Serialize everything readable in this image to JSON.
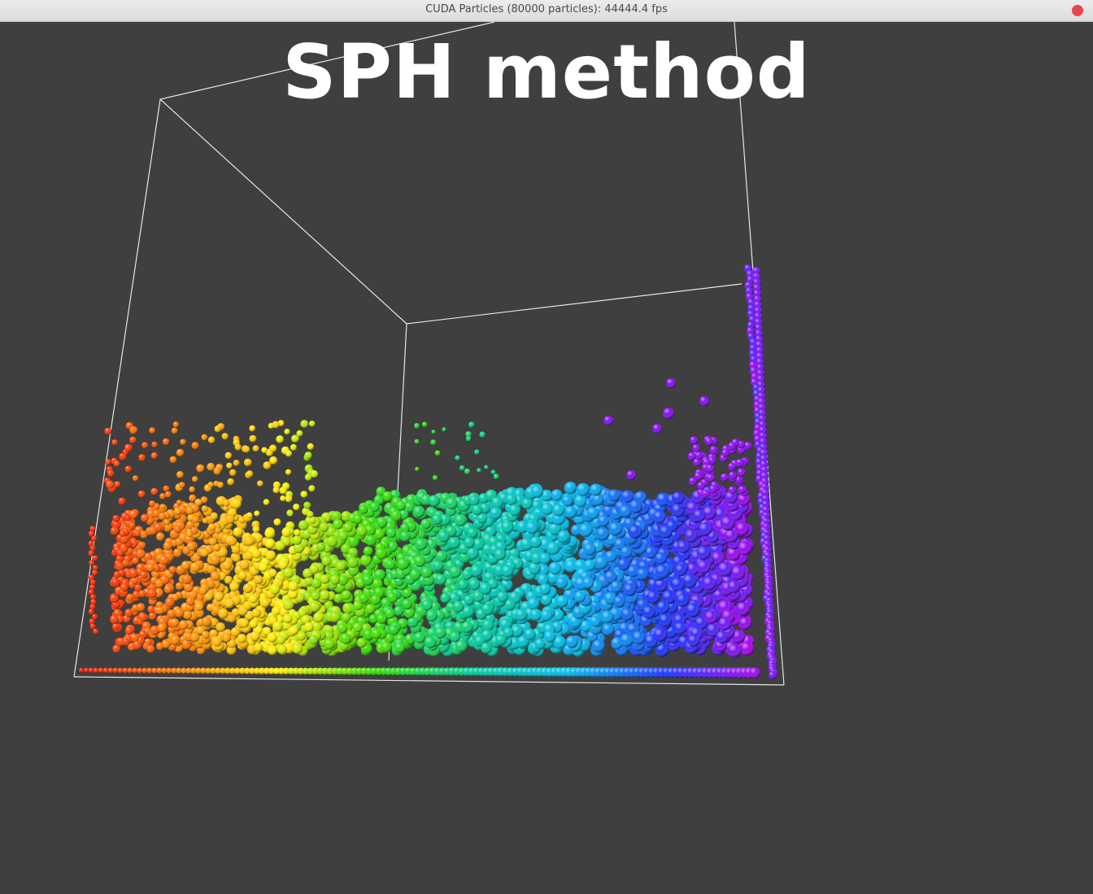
{
  "window": {
    "title": "CUDA Particles (80000 particles): 44444.4 fps",
    "close_icon": "close-icon",
    "close_color": "#e8464f"
  },
  "viewport": {
    "background": "#3f3f3f",
    "overlay_title": "SPH method",
    "bounding_box_color": "#e6e6e6",
    "particle_palette": [
      "#ff1a00",
      "#ff8000",
      "#ffee00",
      "#33dd00",
      "#00cc99",
      "#00bbee",
      "#1a33ff",
      "#aa00ee"
    ]
  }
}
